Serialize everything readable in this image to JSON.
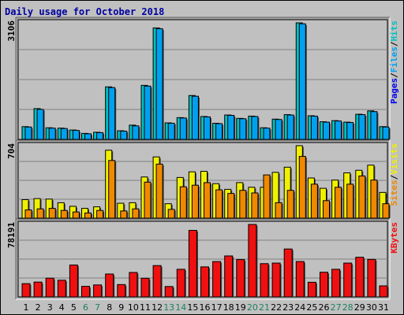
{
  "chart_data": {
    "type": "bar",
    "title": "Daily usage for October 2018",
    "categories": [
      "1",
      "2",
      "3",
      "4",
      "5",
      "6",
      "7",
      "8",
      "9",
      "10",
      "11",
      "12",
      "13",
      "14",
      "15",
      "16",
      "17",
      "18",
      "19",
      "20",
      "21",
      "22",
      "23",
      "24",
      "25",
      "26",
      "27",
      "28",
      "29",
      "30",
      "31"
    ],
    "weekend_days": [
      "6",
      "7",
      "13",
      "14",
      "20",
      "21",
      "27",
      "28"
    ],
    "colors": {
      "frame": "#c0c0c0",
      "panel": "#a8a8a8",
      "plot": "#c0c0c0",
      "title": "#0000a0",
      "tick": "#000000",
      "tick_weekend": "#208060",
      "hits": "#00c0c0",
      "files": "#00a0f0",
      "pages": "#0000f0",
      "visits": "#f0f000",
      "sites": "#f08800",
      "kbytes": "#f01010"
    },
    "panels": [
      {
        "id": "hits-files",
        "max_label": "3106",
        "ymax": 3106,
        "label_parts": [
          "Pages",
          "/",
          "Files",
          "/",
          "Hits"
        ],
        "series": [
          {
            "name": "Hits",
            "values": [
              340,
              820,
              310,
              300,
              250,
              160,
              190,
              1400,
              230,
              380,
              1440,
              2970,
              440,
              580,
              1170,
              610,
              430,
              650,
              560,
              620,
              310,
              540,
              660,
              3106,
              630,
              470,
              500,
              460,
              670,
              760,
              340
            ]
          },
          {
            "name": "Files",
            "values": [
              330,
              800,
              300,
              290,
              240,
              150,
              180,
              1380,
              220,
              360,
              1420,
              2950,
              430,
              570,
              1150,
              600,
              420,
              640,
              550,
              610,
              300,
              530,
              650,
              3080,
              620,
              460,
              490,
              450,
              660,
              740,
              330
            ]
          }
        ]
      },
      {
        "id": "visits-sites",
        "max_label": "704",
        "ymax": 704,
        "label_parts": [
          "Sites",
          "/",
          "Visits"
        ],
        "series": [
          {
            "name": "Visits",
            "values": [
              180,
              190,
              185,
              150,
              115,
              95,
              110,
              660,
              145,
              150,
              400,
              595,
              140,
              395,
              450,
              455,
              335,
              280,
              345,
              300,
              300,
              445,
              495,
              704,
              390,
              290,
              370,
              440,
              465,
              515,
              250
            ]
          },
          {
            "name": "Sites",
            "values": [
              80,
              90,
              95,
              75,
              60,
              50,
              75,
              560,
              70,
              90,
              350,
              525,
              85,
              305,
              320,
              345,
              275,
              240,
              270,
              245,
              420,
              150,
              270,
              600,
              330,
              170,
              300,
              330,
              410,
              370,
              140
            ]
          }
        ]
      },
      {
        "id": "kbytes",
        "max_label": "78191",
        "ymax": 78191,
        "label_parts": [
          "KBytes"
        ],
        "series": [
          {
            "name": "KBytes",
            "values": [
              14300,
              16000,
              20200,
              18000,
              34400,
              11400,
              12900,
              24700,
              13300,
              26400,
              20100,
              33800,
              11200,
              29800,
              71800,
              32400,
              38100,
              44200,
              40300,
              78191,
              35900,
              36500,
              51700,
              38200,
              15800,
              26600,
              29800,
              36500,
              42800,
              40500,
              11900
            ]
          }
        ]
      }
    ]
  }
}
